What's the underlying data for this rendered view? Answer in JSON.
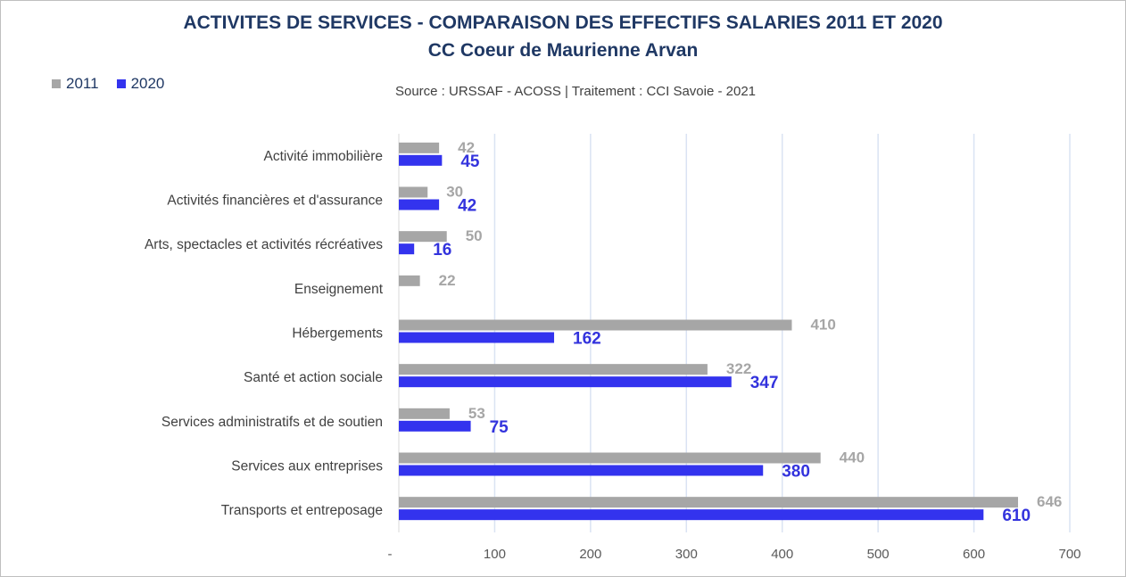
{
  "chart_data": {
    "type": "bar",
    "orientation": "horizontal",
    "title": "ACTIVITES DE SERVICES - COMPARAISON DES EFFECTIFS SALARIES 2011 ET 2020",
    "subtitle": "CC Coeur de Maurienne Arvan",
    "source": "Source  : URSSAF - ACOSS  |  Traitement : CCI Savoie - 2021",
    "categories": [
      "Activité immobilière",
      "Activités financières et d'assurance",
      "Arts, spectacles et activités récréatives",
      "Enseignement",
      "Hébergements",
      "Santé et action sociale",
      "Services administratifs et de soutien",
      "Services aux entreprises",
      "Transports et entreposage"
    ],
    "series": [
      {
        "name": "2011",
        "color": "#a6a6a6",
        "label_color": "#a6a6a6",
        "values": [
          42,
          30,
          50,
          22,
          410,
          322,
          53,
          440,
          646
        ]
      },
      {
        "name": "2020",
        "color": "#3333ee",
        "label_color": "#3333dd",
        "values": [
          45,
          42,
          16,
          null,
          162,
          347,
          75,
          380,
          610
        ]
      }
    ],
    "xlim": [
      0,
      700
    ],
    "x_ticks": [
      0,
      100,
      200,
      300,
      400,
      500,
      600,
      700
    ],
    "x_tick_labels": [
      "-",
      "100",
      "200",
      "300",
      "400",
      "500",
      "600",
      "700"
    ],
    "grid": "vertical",
    "legend": "top-left"
  }
}
